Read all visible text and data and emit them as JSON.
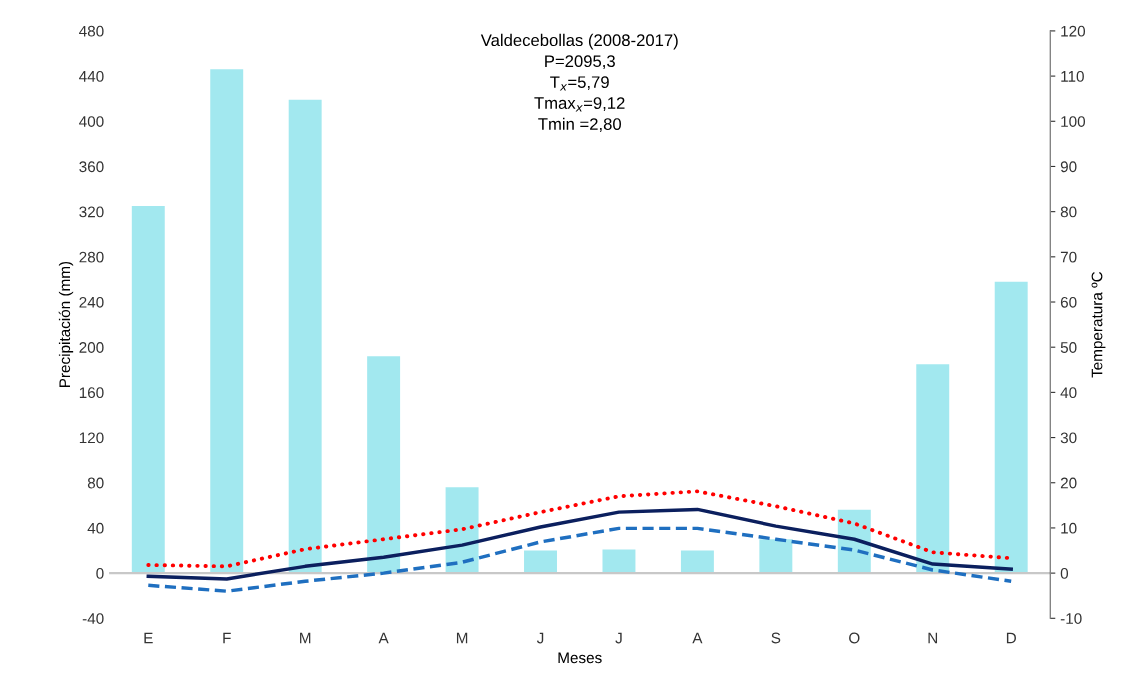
{
  "chart_data": {
    "type": "bar",
    "title": "Valdecebollas (2008-2017)\nP=2095,3\nT$_{x}$=5,79\nTmax$_{x}$=9,12\nTmin =2,80",
    "xlabel": "Meses",
    "ylabel": "Precipitación (mm)",
    "y2label": "Temperatura ºC",
    "categories": [
      "E",
      "F",
      "M",
      "A",
      "M",
      "J",
      "J",
      "A",
      "S",
      "O",
      "N",
      "D"
    ],
    "series": [
      {
        "color": "#a2e8ef",
        "values": [
          325,
          446,
          419,
          192,
          76,
          20,
          21,
          20,
          30,
          56,
          185,
          258
        ]
      },
      {
        "type": "line",
        "axis": "y2",
        "color": "#0b1f5e",
        "line_style": "solid",
        "values": [
          -0.7,
          -1.3,
          1.5,
          3.5,
          6.2,
          10.2,
          13.5,
          14.1,
          10.4,
          7.5,
          2.0,
          0.9
        ]
      },
      {
        "type": "line",
        "axis": "y2",
        "color": "#ff0000",
        "line_style": "dotted",
        "values": [
          1.8,
          1.5,
          5.3,
          7.5,
          9.7,
          13.5,
          17.0,
          18.1,
          14.8,
          11.0,
          4.6,
          3.3
        ]
      },
      {
        "type": "line",
        "axis": "y2",
        "color": "#1f6fc0",
        "line_style": "dashed",
        "values": [
          -2.7,
          -4.0,
          -1.8,
          0,
          2.4,
          6.9,
          9.9,
          9.9,
          7.5,
          5.1,
          0.7,
          -1.8
        ]
      }
    ],
    "ylim": [
      -40,
      480
    ],
    "yticks": [
      -40,
      0,
      40,
      80,
      120,
      160,
      200,
      240,
      280,
      320,
      360,
      400,
      440,
      480
    ],
    "y2lim": [
      -10,
      120
    ],
    "y2ticks": [
      -10,
      0,
      10,
      20,
      30,
      40,
      50,
      60,
      70,
      80,
      90,
      100,
      110,
      120
    ],
    "ref_lines": [
      {
        "axis": "y",
        "value": 0,
        "color": "#c8c8c8"
      }
    ],
    "grid": false,
    "legend": false
  }
}
